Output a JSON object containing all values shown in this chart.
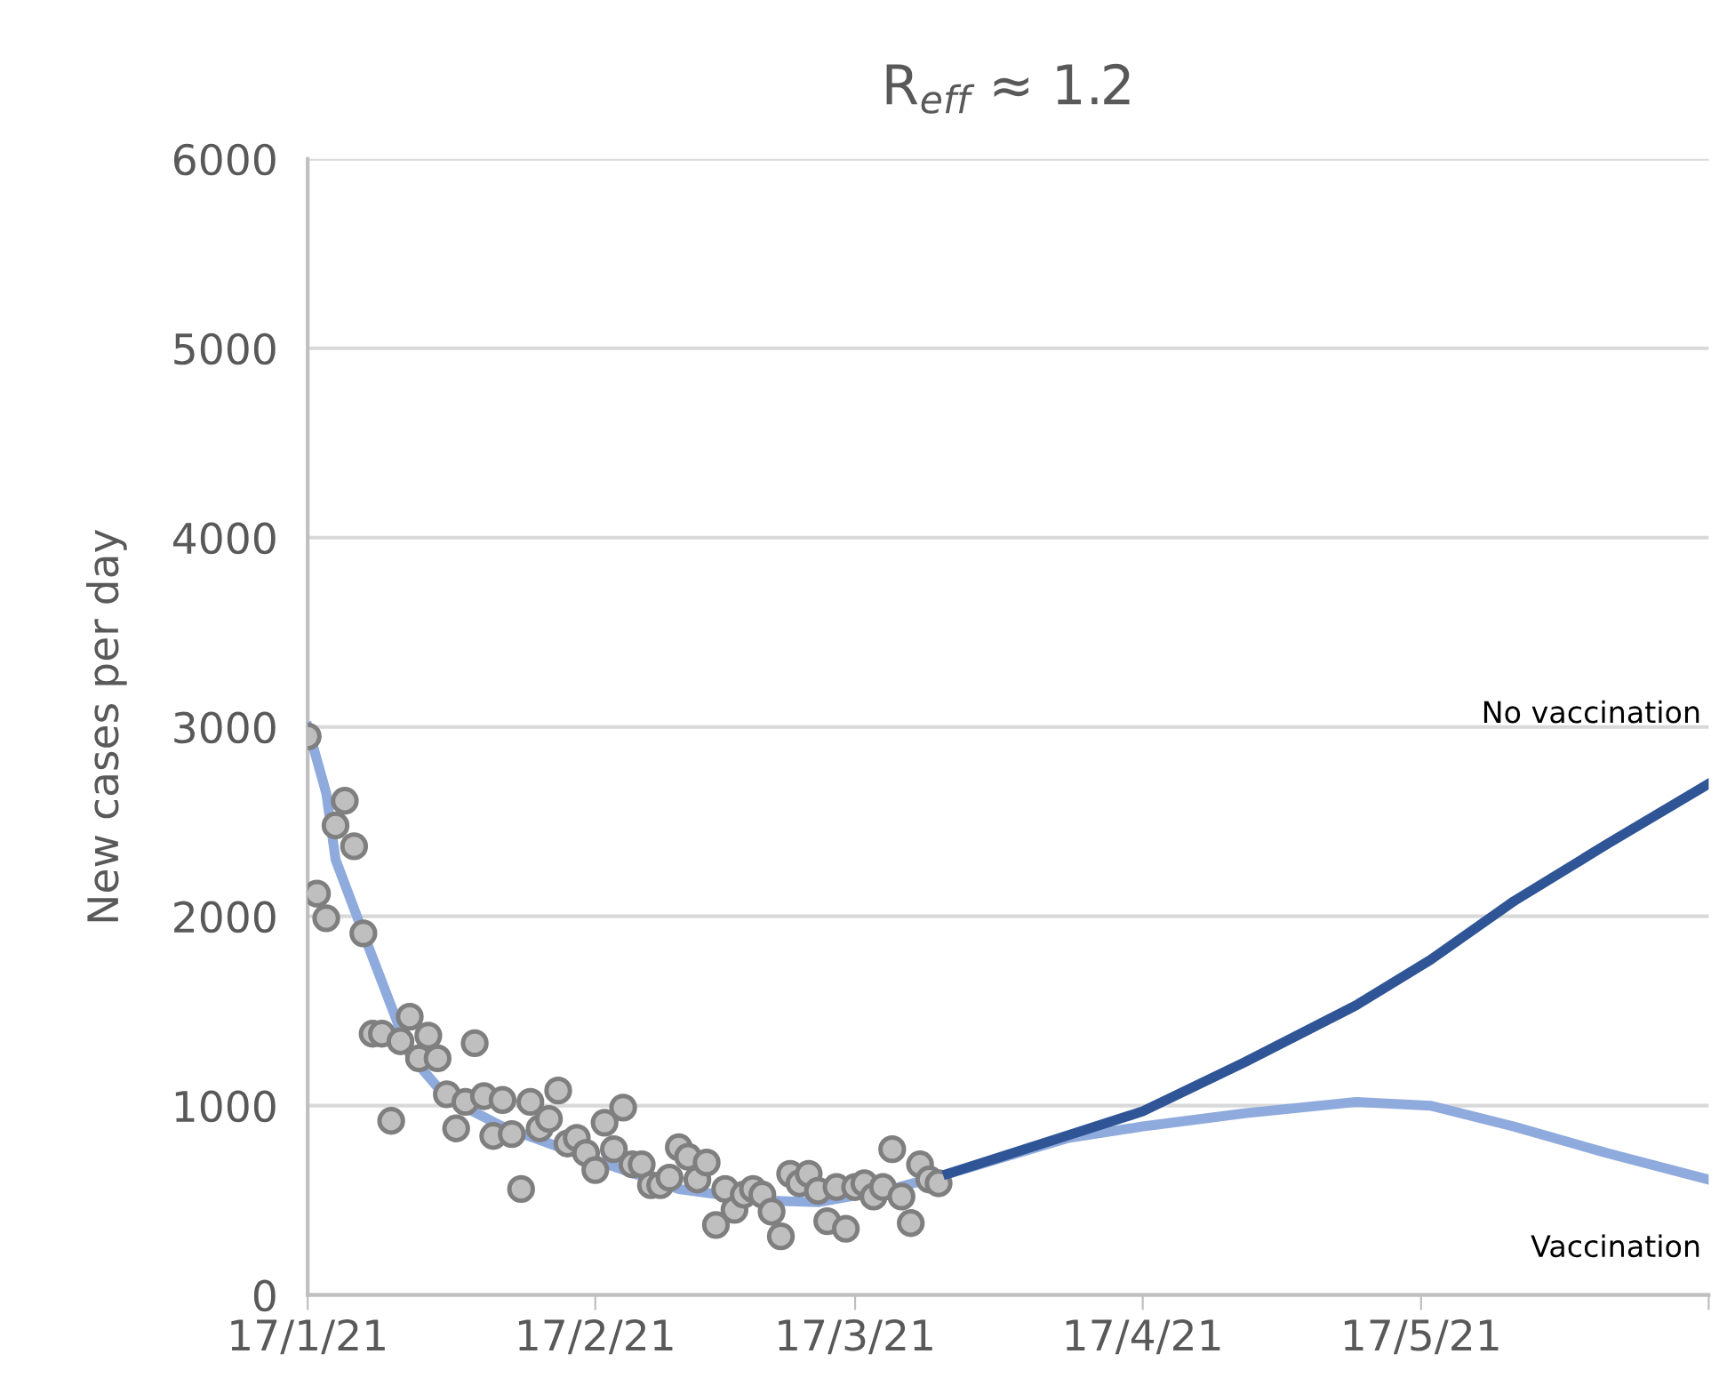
{
  "chart_data": {
    "type": "line",
    "title": "R$_{eff}$ ≈ 1.2",
    "ylabel": "New cases per day",
    "xlim": [
      "2021-01-17",
      "2021-06-17"
    ],
    "ylim": [
      0,
      6000
    ],
    "xticks": [
      {
        "value": "2021-01-17",
        "label": "17/1/21"
      },
      {
        "value": "2021-02-17",
        "label": "17/2/21"
      },
      {
        "value": "2021-03-17",
        "label": "17/3/21"
      },
      {
        "value": "2021-04-17",
        "label": "17/4/21"
      },
      {
        "value": "2021-05-17",
        "label": "17/5/21"
      },
      {
        "value": "2021-06-17",
        "label": null
      }
    ],
    "yticks": [
      0,
      1000,
      2000,
      3000,
      4000,
      5000,
      6000
    ],
    "grid": "y",
    "legend": false,
    "series": [
      {
        "type": "scatter",
        "marker": "circle",
        "color": "#bfbfbf",
        "x": [
          "2021-01-17",
          "2021-01-18",
          "2021-01-19",
          "2021-01-20",
          "2021-01-21",
          "2021-01-22",
          "2021-01-23",
          "2021-01-24",
          "2021-01-25",
          "2021-01-26",
          "2021-01-27",
          "2021-01-28",
          "2021-01-29",
          "2021-01-30",
          "2021-01-31",
          "2021-02-01",
          "2021-02-02",
          "2021-02-03",
          "2021-02-04",
          "2021-02-05",
          "2021-02-06",
          "2021-02-07",
          "2021-02-08",
          "2021-02-09",
          "2021-02-10",
          "2021-02-11",
          "2021-02-12",
          "2021-02-13",
          "2021-02-14",
          "2021-02-15",
          "2021-02-16",
          "2021-02-17",
          "2021-02-18",
          "2021-02-19",
          "2021-02-20",
          "2021-02-21",
          "2021-02-22",
          "2021-02-23",
          "2021-02-24",
          "2021-02-25",
          "2021-02-26",
          "2021-02-27",
          "2021-02-28",
          "2021-03-01",
          "2021-03-02",
          "2021-03-03",
          "2021-03-04",
          "2021-03-05",
          "2021-03-06",
          "2021-03-07",
          "2021-03-08",
          "2021-03-09",
          "2021-03-10",
          "2021-03-11",
          "2021-03-12",
          "2021-03-13",
          "2021-03-14",
          "2021-03-15",
          "2021-03-16",
          "2021-03-17",
          "2021-03-18",
          "2021-03-19",
          "2021-03-20",
          "2021-03-21",
          "2021-03-22",
          "2021-03-23",
          "2021-03-24",
          "2021-03-25",
          "2021-03-26"
        ],
        "values": [
          2950,
          2120,
          1990,
          2480,
          2610,
          2370,
          1910,
          1380,
          1380,
          920,
          1340,
          1470,
          1250,
          1370,
          1250,
          1060,
          880,
          1020,
          1330,
          1050,
          840,
          1030,
          850,
          560,
          1020,
          880,
          930,
          1080,
          800,
          830,
          750,
          660,
          910,
          770,
          990,
          690,
          690,
          580,
          580,
          620,
          780,
          730,
          610,
          700,
          370,
          560,
          450,
          530,
          560,
          530,
          440,
          310,
          640,
          590,
          640,
          550,
          390,
          570,
          350,
          570,
          590,
          520,
          570,
          770,
          520,
          380,
          690,
          610,
          590
        ]
      },
      {
        "marker": "none",
        "name": "Vaccination",
        "color": "#8faadc",
        "x": [
          "2021-01-17",
          "2021-01-19",
          "2021-01-20",
          "2021-01-23",
          "2021-01-28",
          "2021-02-01",
          "2021-02-07",
          "2021-02-16",
          "2021-02-26",
          "2021-03-07",
          "2021-03-13",
          "2021-03-21",
          "2021-03-27",
          "2021-04-09",
          "2021-04-17",
          "2021-04-28",
          "2021-05-10",
          "2021-05-18",
          "2021-05-27",
          "2021-06-06",
          "2021-06-17"
        ],
        "values": [
          3000,
          2650,
          2300,
          1910,
          1270,
          1040,
          890,
          730,
          560,
          500,
          490,
          560,
          640,
          830,
          890,
          960,
          1020,
          1000,
          890,
          750,
          610
        ]
      },
      {
        "marker": "none",
        "name": "No vaccination",
        "color": "#2f5597",
        "x": [
          "2021-03-27",
          "2021-04-17",
          "2021-04-28",
          "2021-05-10",
          "2021-05-18",
          "2021-05-27",
          "2021-06-06",
          "2021-06-17"
        ],
        "values": [
          640,
          970,
          1230,
          1530,
          1770,
          2080,
          2380,
          2700
        ]
      }
    ]
  }
}
